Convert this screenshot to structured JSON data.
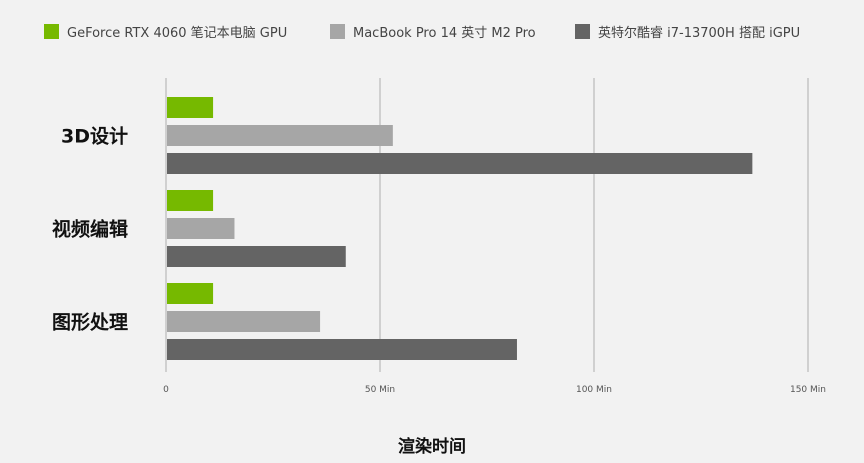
{
  "chart_data": {
    "type": "bar",
    "orientation": "horizontal",
    "categories": [
      "3D设计",
      "视频编辑",
      "图形处理"
    ],
    "series": [
      {
        "name": "GeForce RTX 4060 笔记本电脑 GPU",
        "color": "#76b900",
        "values": [
          11,
          11,
          11
        ]
      },
      {
        "name": "MacBook Pro 14 英寸 M2 Pro",
        "color": "#a6a6a6",
        "values": [
          53,
          16,
          36
        ]
      },
      {
        "name": "英特尔酷睿 i7-13700H 搭配 iGPU",
        "color": "#646464",
        "values": [
          137,
          42,
          82
        ]
      }
    ],
    "xticks": [
      0,
      50,
      100,
      150
    ],
    "xtick_labels": [
      "0",
      "50 Min",
      "100 Min",
      "150 Min"
    ],
    "xlim": [
      0,
      150
    ],
    "xlabel": "渲染时间",
    "grid": true,
    "legend": "top"
  }
}
